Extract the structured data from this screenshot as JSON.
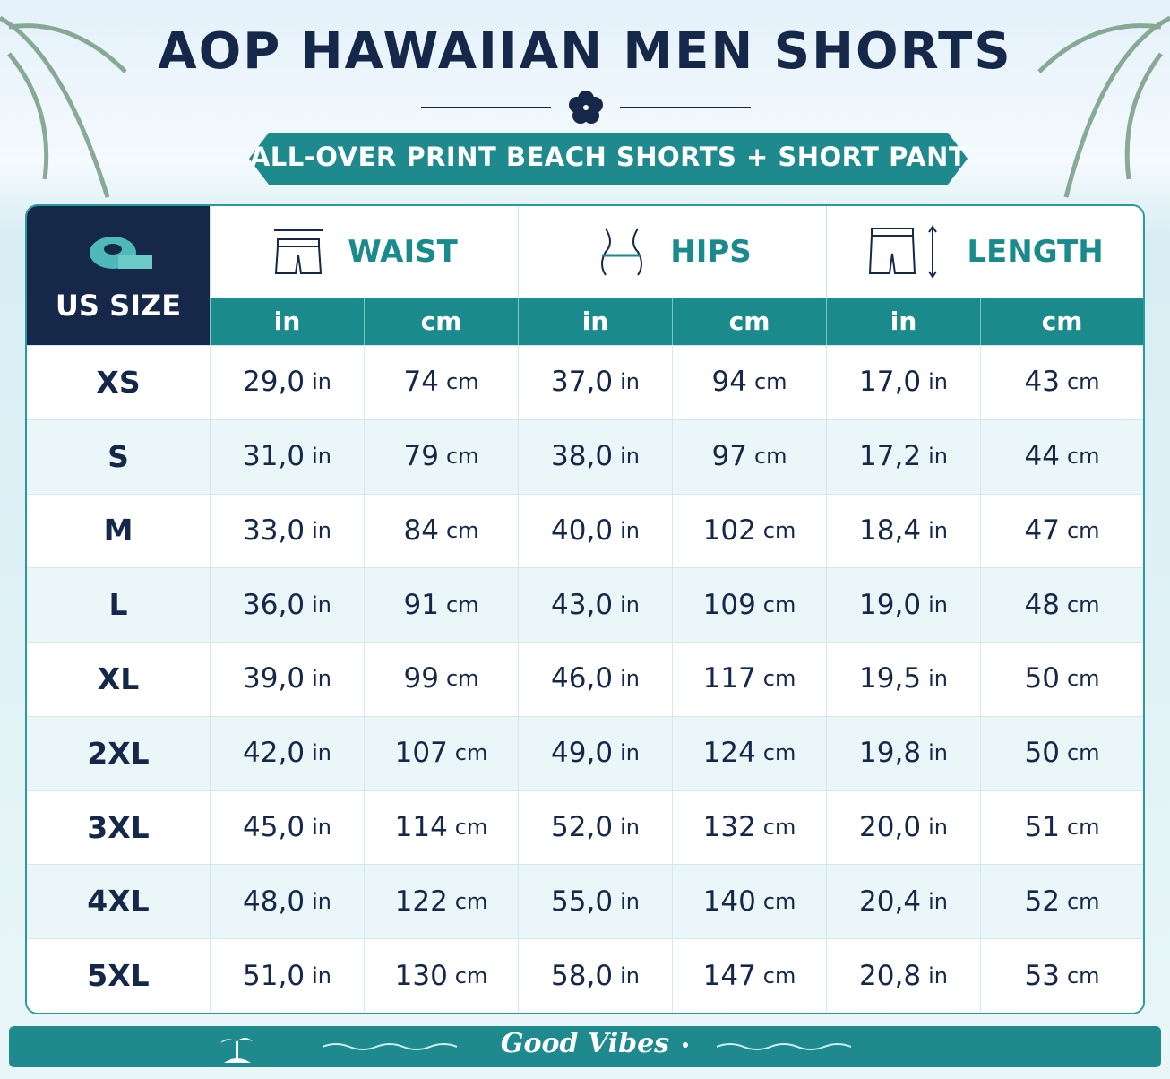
{
  "header": {
    "title": "AOP HAWAIIAN MEN SHORTS",
    "subtitle": "ALL-OVER PRINT BEACH SHORTS + SHORT PANT"
  },
  "table": {
    "size_header": "US SIZE",
    "groups": [
      "WAIST",
      "HIPS",
      "LENGTH"
    ],
    "units": [
      "in",
      "cm",
      "in",
      "cm",
      "in",
      "cm"
    ],
    "rows": [
      {
        "size": "XS",
        "cells": [
          [
            "29,0",
            "in"
          ],
          [
            "74",
            "cm"
          ],
          [
            "37,0",
            "in"
          ],
          [
            "94",
            "cm"
          ],
          [
            "17,0",
            "in"
          ],
          [
            "43",
            "cm"
          ]
        ]
      },
      {
        "size": "S",
        "cells": [
          [
            "31,0",
            "in"
          ],
          [
            "79",
            "cm"
          ],
          [
            "38,0",
            "in"
          ],
          [
            "97",
            "cm"
          ],
          [
            "17,2",
            "in"
          ],
          [
            "44",
            "cm"
          ]
        ]
      },
      {
        "size": "M",
        "cells": [
          [
            "33,0",
            "in"
          ],
          [
            "84",
            "cm"
          ],
          [
            "40,0",
            "in"
          ],
          [
            "102",
            "cm"
          ],
          [
            "18,4",
            "in"
          ],
          [
            "47",
            "cm"
          ]
        ]
      },
      {
        "size": "L",
        "cells": [
          [
            "36,0",
            "in"
          ],
          [
            "91",
            "cm"
          ],
          [
            "43,0",
            "in"
          ],
          [
            "109",
            "cm"
          ],
          [
            "19,0",
            "in"
          ],
          [
            "48",
            "cm"
          ]
        ]
      },
      {
        "size": "XL",
        "cells": [
          [
            "39,0",
            "in"
          ],
          [
            "99",
            "cm"
          ],
          [
            "46,0",
            "in"
          ],
          [
            "117",
            "cm"
          ],
          [
            "19,5",
            "in"
          ],
          [
            "50",
            "cm"
          ]
        ]
      },
      {
        "size": "2XL",
        "cells": [
          [
            "42,0",
            "in"
          ],
          [
            "107",
            "cm"
          ],
          [
            "49,0",
            "in"
          ],
          [
            "124",
            "cm"
          ],
          [
            "19,8",
            "in"
          ],
          [
            "50",
            "cm"
          ]
        ]
      },
      {
        "size": "3XL",
        "cells": [
          [
            "45,0",
            "in"
          ],
          [
            "114",
            "cm"
          ],
          [
            "52,0",
            "in"
          ],
          [
            "132",
            "cm"
          ],
          [
            "20,0",
            "in"
          ],
          [
            "51",
            "cm"
          ]
        ]
      },
      {
        "size": "4XL",
        "cells": [
          [
            "48,0",
            "in"
          ],
          [
            "122",
            "cm"
          ],
          [
            "55,0",
            "in"
          ],
          [
            "140",
            "cm"
          ],
          [
            "20,4",
            "in"
          ],
          [
            "52",
            "cm"
          ]
        ]
      },
      {
        "size": "5XL",
        "cells": [
          [
            "51,0",
            "in"
          ],
          [
            "130",
            "cm"
          ],
          [
            "58,0",
            "in"
          ],
          [
            "147",
            "cm"
          ],
          [
            "20,8",
            "in"
          ],
          [
            "53",
            "cm"
          ]
        ]
      }
    ]
  },
  "footer": {
    "text": "Good Vibes"
  }
}
